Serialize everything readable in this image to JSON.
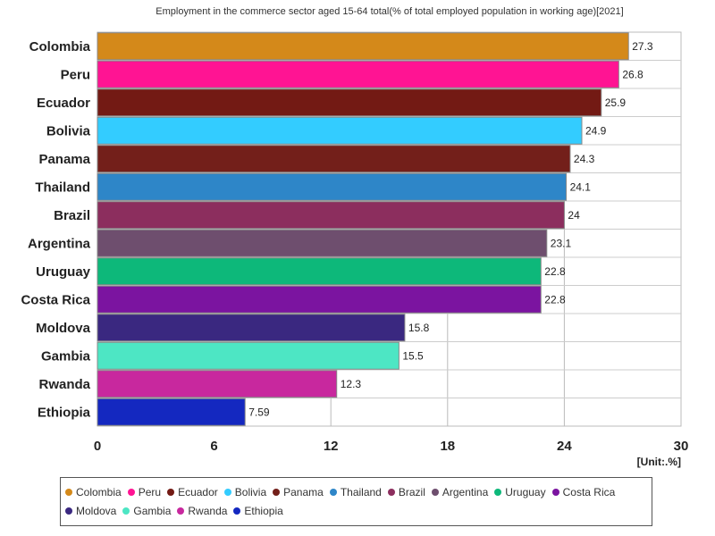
{
  "chart_data": {
    "type": "bar",
    "orientation": "horizontal",
    "title": "Employment in the commerce sector aged 15-64 total(% of total employed population in working age)[2021]",
    "unit_label": "[Unit:.%]",
    "categories": [
      "Colombia",
      "Peru",
      "Ecuador",
      "Bolivia",
      "Panama",
      "Thailand",
      "Brazil",
      "Argentina",
      "Uruguay",
      "Costa Rica",
      "Moldova",
      "Gambia",
      "Rwanda",
      "Ethiopia"
    ],
    "values": [
      27.3,
      26.8,
      25.9,
      24.9,
      24.3,
      24.1,
      24,
      23.1,
      22.8,
      22.8,
      15.8,
      15.5,
      12.3,
      7.59
    ],
    "value_labels": [
      "27.3",
      "26.8",
      "25.9",
      "24.9",
      "24.3",
      "24.1",
      "24",
      "23.1",
      "22.8",
      "22.8",
      "15.8",
      "15.5",
      "12.3",
      "7.59"
    ],
    "colors": [
      "#D4891A",
      "#FF1493",
      "#731A14",
      "#33CCFF",
      "#731F1A",
      "#2E86C8",
      "#8C2E5E",
      "#6E4E6E",
      "#0DB87A",
      "#7B14A0",
      "#3A2880",
      "#4DE6C4",
      "#C8289E",
      "#1428C0"
    ],
    "xlim": [
      0,
      30
    ],
    "xticks": [
      "0",
      "6",
      "12",
      "18",
      "24",
      "30"
    ],
    "grid": true,
    "legend_position": "bottom"
  }
}
